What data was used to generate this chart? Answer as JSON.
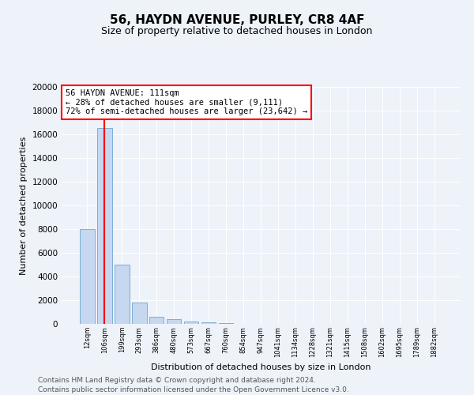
{
  "title": "56, HAYDN AVENUE, PURLEY, CR8 4AF",
  "subtitle": "Size of property relative to detached houses in London",
  "xlabel": "Distribution of detached houses by size in London",
  "ylabel": "Number of detached properties",
  "footnote1": "Contains HM Land Registry data © Crown copyright and database right 2024.",
  "footnote2": "Contains public sector information licensed under the Open Government Licence v3.0.",
  "annotation_line1": "56 HAYDN AVENUE: 111sqm",
  "annotation_line2": "← 28% of detached houses are smaller (9,111)",
  "annotation_line3": "72% of semi-detached houses are larger (23,642) →",
  "bar_labels": [
    "12sqm",
    "106sqm",
    "199sqm",
    "293sqm",
    "386sqm",
    "480sqm",
    "573sqm",
    "667sqm",
    "760sqm",
    "854sqm",
    "947sqm",
    "1041sqm",
    "1134sqm",
    "1228sqm",
    "1321sqm",
    "1415sqm",
    "1508sqm",
    "1602sqm",
    "1695sqm",
    "1789sqm",
    "1882sqm"
  ],
  "bar_values": [
    8000,
    16500,
    5000,
    1800,
    600,
    400,
    200,
    150,
    70,
    20,
    10,
    5,
    3,
    2,
    1,
    1,
    1,
    1,
    1,
    1,
    1
  ],
  "bar_color": "#c5d8f0",
  "bar_edge_color": "#7bafd4",
  "vline_x": 1,
  "vline_color": "red",
  "annotation_box_color": "red",
  "background_color": "#eef2f9",
  "grid_color": "white",
  "ylim": [
    0,
    20000
  ],
  "yticks": [
    0,
    2000,
    4000,
    6000,
    8000,
    10000,
    12000,
    14000,
    16000,
    18000,
    20000
  ],
  "title_fontsize": 11,
  "subtitle_fontsize": 9,
  "ylabel_fontsize": 8,
  "xlabel_fontsize": 8,
  "footnote_color": "#555555",
  "footnote_fontsize": 6.5
}
